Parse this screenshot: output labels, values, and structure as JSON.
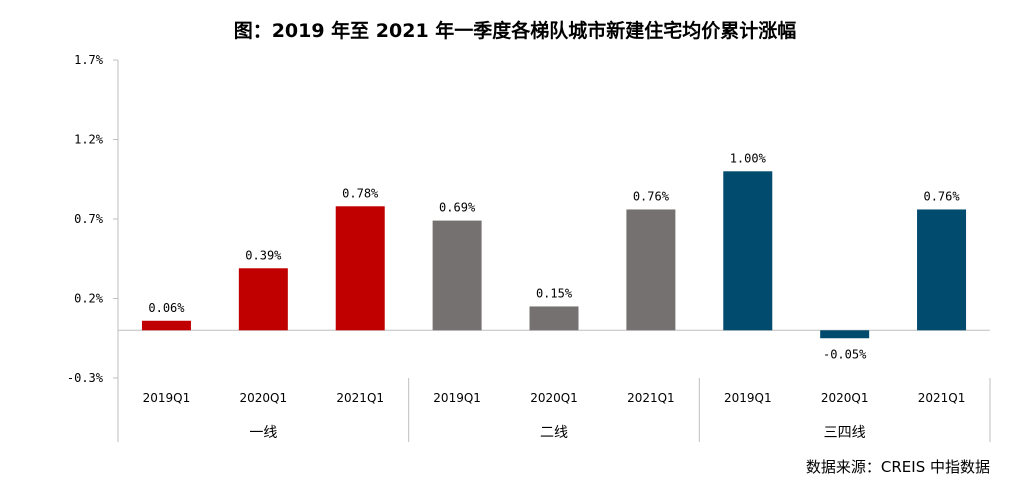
{
  "title": "图：2019 年至 2021 年一季度各梯队城市新建住宅均价累计涨幅",
  "source": "数据来源：CREIS 中指数据",
  "chart_data": {
    "type": "bar",
    "title": "图：2019 年至 2021 年一季度各梯队城市新建住宅均价累计涨幅",
    "ylim": [
      -0.3,
      1.7
    ],
    "yticks": [
      -0.3,
      0.2,
      0.7,
      1.2,
      1.7
    ],
    "ytick_labels": [
      "-0.3%",
      "0.2%",
      "0.7%",
      "1.2%",
      "1.7%"
    ],
    "grid": false,
    "groups": [
      {
        "name": "一线",
        "color": "#c00000",
        "categories": [
          "2019Q1",
          "2020Q1",
          "2021Q1"
        ],
        "values": [
          0.06,
          0.39,
          0.78
        ],
        "labels": [
          "0.06%",
          "0.39%",
          "0.78%"
        ]
      },
      {
        "name": "二线",
        "color": "#767171",
        "categories": [
          "2019Q1",
          "2020Q1",
          "2021Q1"
        ],
        "values": [
          0.69,
          0.15,
          0.76
        ],
        "labels": [
          "0.69%",
          "0.15%",
          "0.76%"
        ]
      },
      {
        "name": "三四线",
        "color": "#004b6e",
        "categories": [
          "2019Q1",
          "2020Q1",
          "2021Q1"
        ],
        "values": [
          1.0,
          -0.05,
          0.76
        ],
        "labels": [
          "1.00%",
          "-0.05%",
          "0.76%"
        ]
      }
    ]
  }
}
